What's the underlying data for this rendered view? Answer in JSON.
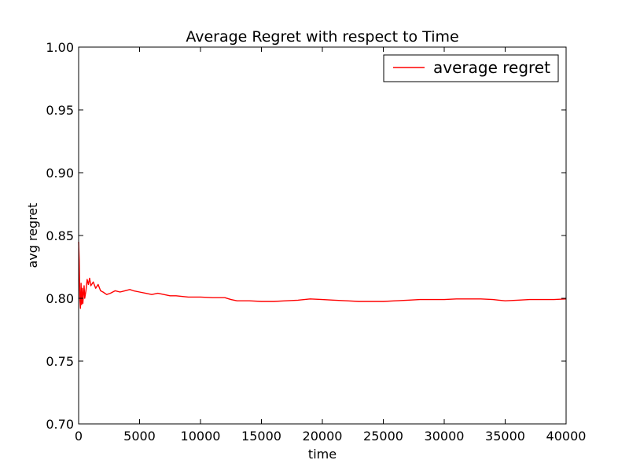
{
  "chart_data": {
    "type": "line",
    "title": "Average Regret with respect to Time",
    "xlabel": "time",
    "ylabel": "avg regret",
    "xlim": [
      0,
      40000
    ],
    "ylim": [
      0.7,
      1.0
    ],
    "xticks": [
      0,
      5000,
      10000,
      15000,
      20000,
      25000,
      30000,
      35000,
      40000
    ],
    "xtick_labels": [
      "0",
      "5000",
      "10000",
      "15000",
      "20000",
      "25000",
      "30000",
      "35000",
      "40000"
    ],
    "yticks": [
      0.7,
      0.75,
      0.8,
      0.85,
      0.9,
      0.95,
      1.0
    ],
    "ytick_labels": [
      "0.70",
      "0.75",
      "0.80",
      "0.85",
      "0.90",
      "0.95",
      "1.00"
    ],
    "grid": false,
    "legend_position": "top-right",
    "series": [
      {
        "name": "average regret",
        "color": "#ff0000",
        "x": [
          0,
          50,
          100,
          150,
          200,
          250,
          300,
          350,
          400,
          450,
          500,
          600,
          700,
          800,
          900,
          1000,
          1200,
          1400,
          1600,
          1800,
          2000,
          2300,
          2600,
          3000,
          3400,
          3800,
          4200,
          4500,
          5000,
          5500,
          6000,
          6500,
          7000,
          7500,
          8000,
          9000,
          10000,
          11000,
          12000,
          12500,
          13000,
          14000,
          15000,
          16000,
          17000,
          18000,
          19000,
          20000,
          21000,
          22000,
          23000,
          24000,
          25000,
          26000,
          27000,
          28000,
          29000,
          30000,
          31000,
          32000,
          33000,
          34000,
          35000,
          36000,
          37000,
          38000,
          39000,
          40000
        ],
        "y": [
          0.845,
          0.83,
          0.8,
          0.792,
          0.812,
          0.795,
          0.808,
          0.796,
          0.804,
          0.81,
          0.8,
          0.806,
          0.815,
          0.811,
          0.816,
          0.81,
          0.813,
          0.808,
          0.811,
          0.806,
          0.805,
          0.803,
          0.804,
          0.806,
          0.805,
          0.806,
          0.807,
          0.806,
          0.805,
          0.804,
          0.803,
          0.804,
          0.803,
          0.802,
          0.802,
          0.801,
          0.801,
          0.8005,
          0.8005,
          0.799,
          0.798,
          0.798,
          0.7975,
          0.7975,
          0.798,
          0.7985,
          0.7995,
          0.799,
          0.7985,
          0.798,
          0.7975,
          0.7975,
          0.7975,
          0.798,
          0.7985,
          0.799,
          0.799,
          0.799,
          0.7995,
          0.7995,
          0.7995,
          0.799,
          0.798,
          0.7985,
          0.799,
          0.799,
          0.799,
          0.7995
        ]
      }
    ]
  }
}
